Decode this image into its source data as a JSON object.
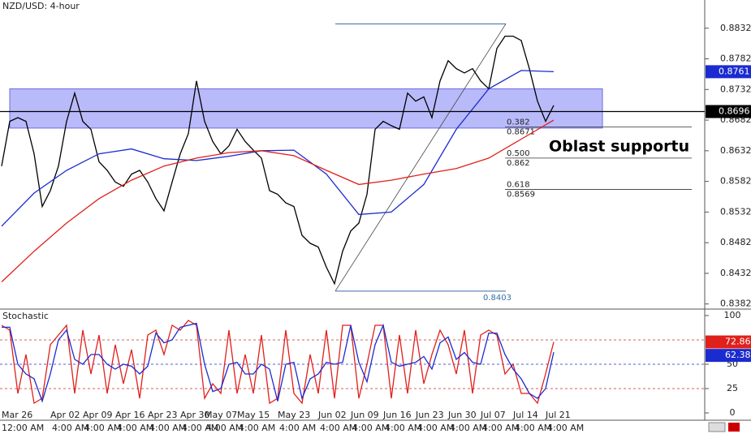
{
  "chart_data": [
    {
      "type": "line",
      "title": "NZD/USD: 4-hour",
      "categories": [
        null,
        null,
        "Mar 26",
        null,
        null,
        null,
        null,
        null,
        "Apr 02",
        null,
        null,
        null,
        "Apr 09",
        null,
        null,
        null,
        "Apr 16",
        null,
        null,
        null,
        "Apr 23",
        null,
        null,
        null,
        "Apr 30",
        null,
        null,
        "May 07",
        null,
        null,
        null,
        "May 15",
        null,
        null,
        null,
        null,
        "May 23",
        null,
        null,
        null,
        null,
        "Jun 02",
        null,
        null,
        null,
        "Jun 09",
        null,
        null,
        null,
        "Jun 16",
        null,
        null,
        null,
        "Jun 23",
        null,
        null,
        null,
        "Jun 30",
        null,
        null,
        null,
        "Jul 07",
        null,
        null,
        null,
        "Jul 14",
        null,
        null,
        null,
        "Jul 21"
      ],
      "time_labels": [
        "12:00 AM",
        null,
        null,
        null,
        null,
        null,
        null,
        null,
        "4:00 AM",
        null,
        null,
        null,
        "4:00 AM",
        null,
        null,
        null,
        "4:00 AM",
        null,
        null,
        null,
        "4:00 AM",
        null,
        null,
        null,
        "4:00 AM",
        null,
        null,
        "4:00 AM",
        null,
        null,
        null,
        "4:00 AM",
        null,
        null,
        null,
        null,
        "4:00 AM",
        null,
        null,
        null,
        null,
        "4:00 AM",
        null,
        null,
        null,
        "4:00 AM",
        null,
        null,
        null,
        "4:00 AM",
        null,
        null,
        null,
        "4:00 AM",
        null,
        null,
        null,
        "4:00 AM",
        null,
        null,
        null,
        "4:00 AM",
        null,
        null,
        null,
        "4:00 AM",
        null,
        null,
        null,
        "4:00 AM"
      ],
      "series": [
        {
          "color": "#000000",
          "values": [
            0.8607,
            0.868,
            0.8686,
            0.868,
            0.8627,
            0.8541,
            0.8567,
            0.8607,
            0.868,
            0.8726,
            0.868,
            0.8667,
            0.8614,
            0.86,
            0.8581,
            0.8574,
            0.8594,
            0.86,
            0.8581,
            0.8554,
            0.8534,
            0.8581,
            0.8627,
            0.866,
            0.8746,
            0.868,
            0.8647,
            0.8627,
            0.864,
            0.8667,
            0.8647,
            0.8633,
            0.862,
            0.8567,
            0.8561,
            0.8547,
            0.8541,
            0.8494,
            0.8481,
            0.8475,
            0.8442,
            0.8415,
            0.8468,
            0.8501,
            0.8514,
            0.8561,
            0.8667,
            0.868,
            0.8673,
            0.8667,
            0.8726,
            0.8713,
            0.872,
            0.8686,
            0.8746,
            0.8779,
            0.8766,
            0.8759,
            0.8766,
            0.8746,
            0.8733,
            0.8799,
            0.8819,
            0.8819,
            0.8812,
            0.8766,
            0.8713,
            0.868,
            0.8706,
            null
          ]
        },
        {
          "color": "#1a2bd0",
          "x": [
            0,
            4,
            8,
            12,
            16,
            20,
            24,
            28,
            32,
            36,
            40,
            44,
            48,
            52,
            56,
            60,
            64,
            68
          ],
          "values": [
            0.8509,
            0.8563,
            0.86,
            0.8627,
            0.8635,
            0.8619,
            0.8616,
            0.8623,
            0.8632,
            0.8633,
            0.8594,
            0.8528,
            0.8532,
            0.8577,
            0.8667,
            0.8733,
            0.8763,
            0.8761
          ]
        },
        {
          "color": "#e0201b",
          "x": [
            0,
            4,
            8,
            12,
            16,
            20,
            24,
            28,
            32,
            36,
            40,
            44,
            48,
            52,
            56,
            60,
            64,
            68
          ],
          "values": [
            0.8418,
            0.8468,
            0.8514,
            0.8554,
            0.8584,
            0.8607,
            0.862,
            0.8629,
            0.8632,
            0.8624,
            0.86,
            0.8577,
            0.8584,
            0.8594,
            0.8603,
            0.862,
            0.8651,
            0.8682
          ]
        }
      ],
      "ylim": [
        0.8375,
        0.8878
      ],
      "yticks": [
        0.8832,
        0.8782,
        0.8732,
        0.8682,
        0.8632,
        0.8582,
        0.8532,
        0.8482,
        0.8432,
        0.8382
      ],
      "support_zone": [
        0.8669,
        0.8733
      ],
      "support_label": "Oblast supportu",
      "current_price": 0.8696,
      "fib": {
        "swing_high": 0.8839,
        "swing_low": 0.8403,
        "levels": [
          {
            "ratio": "0.382",
            "price": 0.8671
          },
          {
            "ratio": "0.500",
            "price": 0.862
          },
          {
            "ratio": "0.618",
            "price": 0.8569
          }
        ]
      }
    },
    {
      "type": "line",
      "title": "Stochastic",
      "series": [
        {
          "color": "#e0201b",
          "values": [
            90,
            85,
            20,
            60,
            10,
            15,
            70,
            80,
            90,
            20,
            85,
            40,
            80,
            20,
            70,
            30,
            65,
            15,
            80,
            85,
            60,
            90,
            85,
            95,
            90,
            15,
            30,
            20,
            85,
            20,
            60,
            20,
            80,
            10,
            15,
            85,
            20,
            10,
            60,
            20,
            85,
            15,
            90,
            90,
            15,
            50,
            90,
            90,
            15,
            80,
            20,
            85,
            30,
            60,
            85,
            70,
            40,
            85,
            20,
            80,
            85,
            80,
            40,
            50,
            20,
            20,
            10,
            40,
            72.86,
            null
          ]
        },
        {
          "color": "#1a2bd0",
          "values": [
            88,
            88,
            50,
            40,
            35,
            12,
            40,
            75,
            85,
            55,
            50,
            60,
            60,
            50,
            45,
            50,
            48,
            40,
            48,
            82,
            72,
            75,
            88,
            90,
            92,
            50,
            22,
            25,
            50,
            52,
            40,
            40,
            50,
            45,
            12,
            50,
            52,
            15,
            35,
            40,
            52,
            50,
            52,
            90,
            52,
            32,
            70,
            90,
            52,
            48,
            50,
            52,
            58,
            45,
            72,
            78,
            55,
            62,
            52,
            50,
            82,
            82,
            60,
            45,
            35,
            20,
            15,
            25,
            62.38,
            null
          ]
        }
      ],
      "ylim": [
        -7.5,
        105.8
      ],
      "yticks": [
        100,
        50,
        25,
        0
      ],
      "levels": [
        75,
        50,
        25
      ]
    }
  ]
}
